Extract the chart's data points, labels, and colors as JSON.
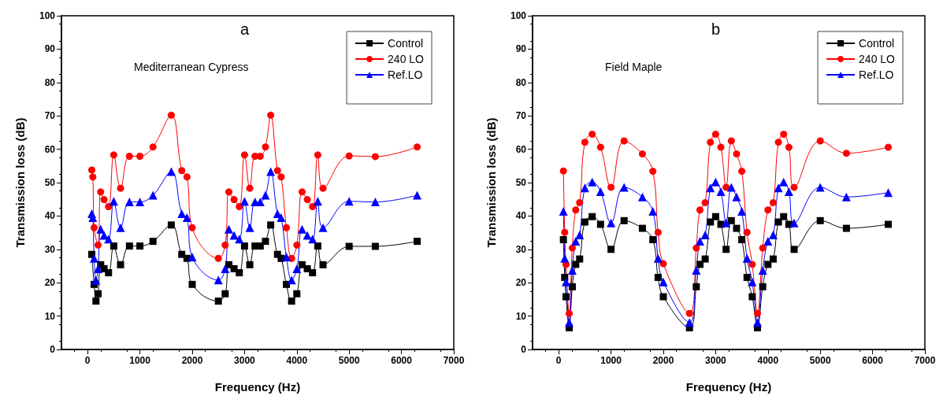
{
  "chart_data": [
    {
      "type": "line",
      "title": "a",
      "subtitle": "Mediterranean Cypress",
      "xlabel": "Frequency (Hz)",
      "ylabel": "Transmission loss (dB)",
      "x": [
        80,
        100,
        125,
        160,
        200,
        250,
        315,
        400,
        500,
        630,
        800,
        1000,
        1250,
        1600,
        1800,
        1900,
        2000,
        2500,
        2630,
        2700,
        2800,
        2900,
        3000,
        3100,
        3200,
        3300,
        3400,
        3500,
        3630,
        3700,
        3800,
        3900,
        4000,
        4100,
        4200,
        4300,
        4400,
        4500,
        5000,
        5500,
        6300
      ],
      "series": [
        {
          "name": "Control",
          "color": "#000000",
          "marker": "square",
          "values": [
            28.5,
            null,
            19.5,
            14.5,
            16.7,
            25.4,
            24.2,
            23.0,
            31.0,
            25.4,
            31.0,
            31.0,
            32.4,
            37.3,
            28.5,
            27.3,
            19.5,
            14.5,
            16.7,
            25.4,
            24.2,
            23.0,
            31.0,
            25.4,
            31.0,
            31.0,
            32.4,
            37.3,
            28.5,
            27.3,
            19.5,
            14.5,
            16.7,
            25.4,
            24.2,
            23.0,
            31.0,
            25.4,
            30.9,
            30.9,
            32.4
          ]
        },
        {
          "name": "240 LO",
          "color": "#ff0000",
          "marker": "circle",
          "values": [
            53.8,
            51.7,
            36.5,
            null,
            31.3,
            47.2,
            44.9,
            42.8,
            58.3,
            48.3,
            57.9,
            57.9,
            60.7,
            70.2,
            53.6,
            51.7,
            36.5,
            27.3,
            31.3,
            47.2,
            44.9,
            42.8,
            58.3,
            48.3,
            57.9,
            57.9,
            60.7,
            70.2,
            53.6,
            51.7,
            36.5,
            27.3,
            31.3,
            47.2,
            44.9,
            42.8,
            58.3,
            48.3,
            58.0,
            57.8,
            60.7
          ]
        },
        {
          "name": "Ref.LO",
          "color": "#0000ff",
          "marker": "triangle",
          "values": [
            40.7,
            39.5,
            27.3,
            20.7,
            24.2,
            36.0,
            34.2,
            33.1,
            44.4,
            36.5,
            44.2,
            44.2,
            46.2,
            53.3,
            40.7,
            39.5,
            27.7,
            20.8,
            24.2,
            36.0,
            34.2,
            33.1,
            44.4,
            36.5,
            44.2,
            44.2,
            46.2,
            53.3,
            40.7,
            39.5,
            27.7,
            20.8,
            24.2,
            36.0,
            34.2,
            33.1,
            44.4,
            36.5,
            44.4,
            44.2,
            46.2
          ]
        }
      ],
      "xlim": [
        -500,
        7000
      ],
      "xticks": [
        0,
        1000,
        2000,
        3000,
        4000,
        5000,
        6000,
        7000
      ],
      "ylim": [
        0,
        100
      ],
      "yticks": [
        0,
        10,
        20,
        30,
        40,
        50,
        60,
        70,
        80,
        90,
        100
      ],
      "legend": "top right",
      "grid": false
    },
    {
      "type": "line",
      "title": "b",
      "subtitle": "Field Maple",
      "xlabel": "Frequency (Hz)",
      "ylabel": "Transmission loss (dB)",
      "x": [
        90,
        115,
        140,
        200,
        260,
        325,
        400,
        500,
        640,
        800,
        1000,
        1250,
        1600,
        1800,
        1900,
        2000,
        2500,
        2630,
        2700,
        2800,
        2900,
        3000,
        3100,
        3200,
        3300,
        3400,
        3500,
        3600,
        3700,
        3800,
        3900,
        4000,
        4100,
        4200,
        4300,
        4400,
        4500,
        5000,
        5500,
        6300
      ],
      "series": [
        {
          "name": "Control",
          "color": "#000000",
          "marker": "square",
          "values": [
            32.9,
            21.6,
            15.8,
            6.5,
            18.8,
            25.5,
            27.1,
            38.2,
            39.8,
            37.5,
            30.0,
            38.6,
            36.3,
            32.9,
            21.6,
            15.8,
            6.5,
            18.8,
            25.5,
            27.1,
            38.2,
            39.8,
            37.5,
            30.0,
            38.6,
            36.3,
            32.9,
            21.6,
            15.8,
            6.5,
            18.8,
            25.5,
            27.1,
            38.2,
            39.8,
            37.5,
            30.0,
            38.6,
            36.3,
            37.5
          ]
        },
        {
          "name": "240 LO",
          "color": "#ff0000",
          "marker": "circle",
          "values": [
            53.5,
            35.1,
            25.5,
            10.8,
            30.4,
            41.8,
            44.0,
            62.1,
            64.5,
            60.6,
            48.6,
            62.5,
            58.6,
            53.4,
            35.1,
            25.7,
            10.8,
            30.4,
            41.8,
            44.0,
            62.1,
            64.5,
            60.6,
            48.6,
            62.5,
            58.6,
            53.4,
            35.1,
            25.5,
            10.8,
            30.4,
            41.8,
            44.0,
            62.1,
            64.5,
            60.6,
            48.6,
            62.5,
            58.8,
            60.6
          ]
        },
        {
          "name": "Ref.LO",
          "color": "#0000ff",
          "marker": "triangle",
          "values": [
            41.4,
            27.3,
            20.2,
            8.1,
            23.7,
            32.4,
            34.3,
            48.4,
            50.2,
            47.3,
            37.9,
            48.6,
            45.7,
            41.4,
            27.3,
            20.2,
            8.1,
            23.7,
            32.4,
            34.3,
            48.4,
            50.2,
            47.3,
            37.9,
            48.6,
            45.7,
            41.4,
            27.3,
            20.2,
            8.1,
            23.7,
            32.4,
            34.3,
            48.4,
            50.2,
            47.3,
            37.9,
            48.6,
            45.7,
            47.0
          ]
        }
      ],
      "xlim": [
        -500,
        7000
      ],
      "xticks": [
        0,
        1000,
        2000,
        3000,
        4000,
        5000,
        6000,
        7000
      ],
      "ylim": [
        0,
        100
      ],
      "yticks": [
        0,
        10,
        20,
        30,
        40,
        50,
        60,
        70,
        80,
        90,
        100
      ],
      "legend": "top right",
      "grid": false
    }
  ]
}
